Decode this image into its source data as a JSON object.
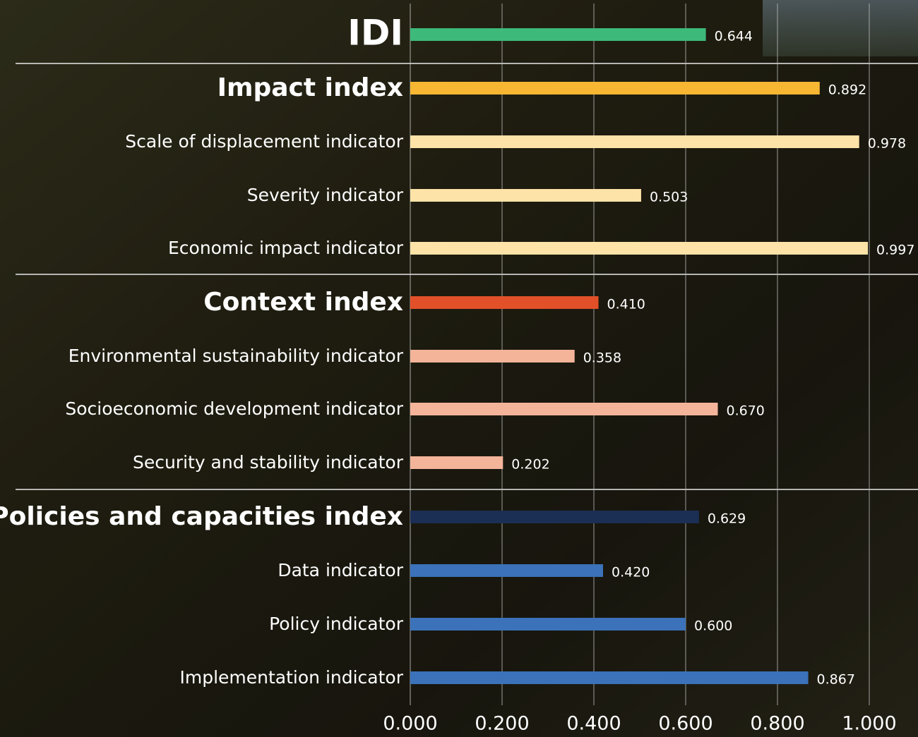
{
  "chart_data": {
    "type": "bar",
    "orientation": "horizontal",
    "categories": [
      "IDI",
      "Impact index",
      "Scale of displacement indicator",
      "Severity indicator",
      "Economic impact indicator",
      "Context index",
      "Environmental sustainability indicator",
      "Socioeconomic development indicator",
      "Security and stability indicator",
      "Policies and capacities index",
      "Data indicator",
      "Policy indicator",
      "Implementation indicator"
    ],
    "values": [
      0.644,
      0.892,
      0.978,
      0.503,
      0.997,
      0.41,
      0.358,
      0.67,
      0.202,
      0.629,
      0.42,
      0.6,
      0.867
    ],
    "value_labels": [
      "0.644",
      "0.892",
      "0.978",
      "0.503",
      "0.997",
      "0.410",
      "0.358",
      "0.670",
      "0.202",
      "0.629",
      "0.420",
      "0.600",
      "0.867"
    ],
    "colors": [
      "#3dba7a",
      "#f7b733",
      "#fde3a7",
      "#fde3a7",
      "#fde3a7",
      "#e2502a",
      "#f4b49a",
      "#f4b49a",
      "#f4b49a",
      "#1b2f55",
      "#3b72b9",
      "#3b72b9",
      "#3b72b9"
    ],
    "xlim": [
      0,
      1
    ],
    "xticks": [
      {
        "value": 0,
        "label": "0.000"
      },
      {
        "value": 0.2,
        "label": "0.200"
      },
      {
        "value": 0.4,
        "label": "0.400"
      },
      {
        "value": 0.6,
        "label": "0.600"
      },
      {
        "value": 0.8,
        "label": "0.800"
      },
      {
        "value": 1,
        "label": "1.000"
      }
    ],
    "grid": true
  }
}
